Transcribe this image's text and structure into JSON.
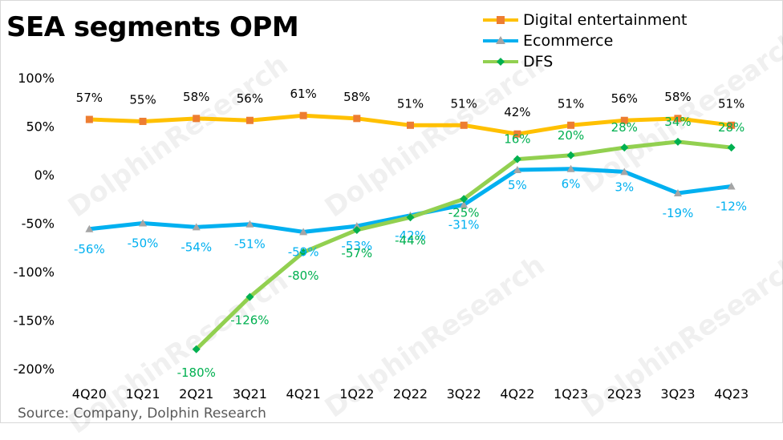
{
  "chart_data": {
    "type": "line",
    "title": "SEA segments OPM",
    "source": "Source: Company, Dolphin Research",
    "watermark": "DolphinResearch",
    "xlabel": "",
    "ylabel": "",
    "ylim": [
      -200,
      100
    ],
    "yticks": [
      100,
      50,
      0,
      -50,
      -100,
      -150,
      -200
    ],
    "ytick_labels": [
      "100%",
      "50%",
      "0%",
      "-50%",
      "-100%",
      "-150%",
      "-200%"
    ],
    "grid": false,
    "legend_position": "top-right",
    "categories": [
      "4Q20",
      "1Q21",
      "2Q21",
      "3Q21",
      "4Q21",
      "1Q22",
      "2Q22",
      "3Q22",
      "4Q22",
      "1Q23",
      "2Q23",
      "3Q23",
      "4Q23"
    ],
    "series": [
      {
        "name": "Digital entertainment",
        "color": "#FFC000",
        "marker_color": "#ED7D31",
        "marker": "square",
        "label_color": "#000000",
        "values": [
          57,
          55,
          58,
          56,
          61,
          58,
          51,
          51,
          42,
          51,
          56,
          58,
          51
        ],
        "labels": [
          "57%",
          "55%",
          "58%",
          "56%",
          "61%",
          "58%",
          "51%",
          "51%",
          "42%",
          "51%",
          "56%",
          "58%",
          "51%"
        ]
      },
      {
        "name": "Ecommerce",
        "color": "#00B0F0",
        "marker_color": "#A5A5A5",
        "marker": "triangle",
        "label_color": "#00B0F0",
        "values": [
          -56,
          -50,
          -54,
          -51,
          -59,
          -53,
          -42,
          -31,
          5,
          6,
          3,
          -19,
          -12
        ],
        "labels": [
          "-56%",
          "-50%",
          "-54%",
          "-51%",
          "-59%",
          "-53%",
          "-42%",
          "-31%",
          "5%",
          "6%",
          "3%",
          "-19%",
          "-12%"
        ]
      },
      {
        "name": "DFS",
        "color": "#92D050",
        "marker_color": "#00B050",
        "marker": "diamond",
        "label_color": "#00B050",
        "values": [
          null,
          null,
          -180,
          -126,
          -80,
          -57,
          -44,
          -25,
          16,
          20,
          28,
          34,
          28
        ],
        "labels": [
          null,
          null,
          "-180%",
          "-126%",
          "-80%",
          "-57%",
          "-44%",
          "-25%",
          "16%",
          "20%",
          "28%",
          "34%",
          "28%"
        ]
      }
    ]
  }
}
